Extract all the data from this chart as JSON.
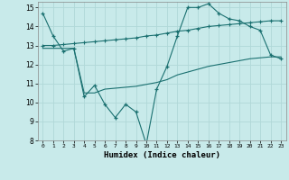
{
  "xlabel": "Humidex (Indice chaleur)",
  "bg_color": "#c8eaea",
  "grid_color": "#b0d8d8",
  "line_color": "#1a7070",
  "xlim": [
    -0.5,
    23.5
  ],
  "ylim": [
    8,
    15.3
  ],
  "xticks": [
    0,
    1,
    2,
    3,
    4,
    5,
    6,
    7,
    8,
    9,
    10,
    11,
    12,
    13,
    14,
    15,
    16,
    17,
    18,
    19,
    20,
    21,
    22,
    23
  ],
  "yticks": [
    8,
    9,
    10,
    11,
    12,
    13,
    14,
    15
  ],
  "line1_x": [
    0,
    1,
    2,
    3,
    4,
    5,
    6,
    7,
    8,
    9,
    10,
    11,
    12,
    13,
    14,
    15,
    16,
    17,
    18,
    19,
    20,
    21,
    22,
    23
  ],
  "line1_y": [
    14.7,
    13.5,
    12.7,
    12.85,
    10.3,
    10.9,
    9.9,
    9.2,
    9.9,
    9.5,
    7.8,
    10.7,
    11.9,
    13.5,
    15.0,
    15.0,
    15.2,
    14.7,
    14.4,
    14.3,
    14.0,
    13.8,
    12.5,
    12.3
  ],
  "line2_x": [
    0,
    1,
    2,
    3,
    4,
    5,
    6,
    7,
    8,
    9,
    10,
    11,
    12,
    13,
    14,
    15,
    16,
    17,
    18,
    19,
    20,
    21,
    22,
    23
  ],
  "line2_y": [
    13.0,
    13.0,
    13.05,
    13.1,
    13.15,
    13.2,
    13.25,
    13.3,
    13.35,
    13.4,
    13.5,
    13.55,
    13.65,
    13.75,
    13.8,
    13.9,
    14.0,
    14.05,
    14.1,
    14.15,
    14.2,
    14.25,
    14.3,
    14.3
  ],
  "line3_x": [
    0,
    1,
    2,
    3,
    4,
    5,
    6,
    7,
    8,
    9,
    10,
    11,
    12,
    13,
    14,
    15,
    16,
    17,
    18,
    19,
    20,
    21,
    22,
    23
  ],
  "line3_y": [
    12.85,
    12.85,
    12.85,
    12.85,
    10.5,
    10.5,
    10.7,
    10.75,
    10.8,
    10.85,
    10.95,
    11.05,
    11.2,
    11.45,
    11.6,
    11.75,
    11.9,
    12.0,
    12.1,
    12.2,
    12.3,
    12.35,
    12.4,
    12.4
  ]
}
